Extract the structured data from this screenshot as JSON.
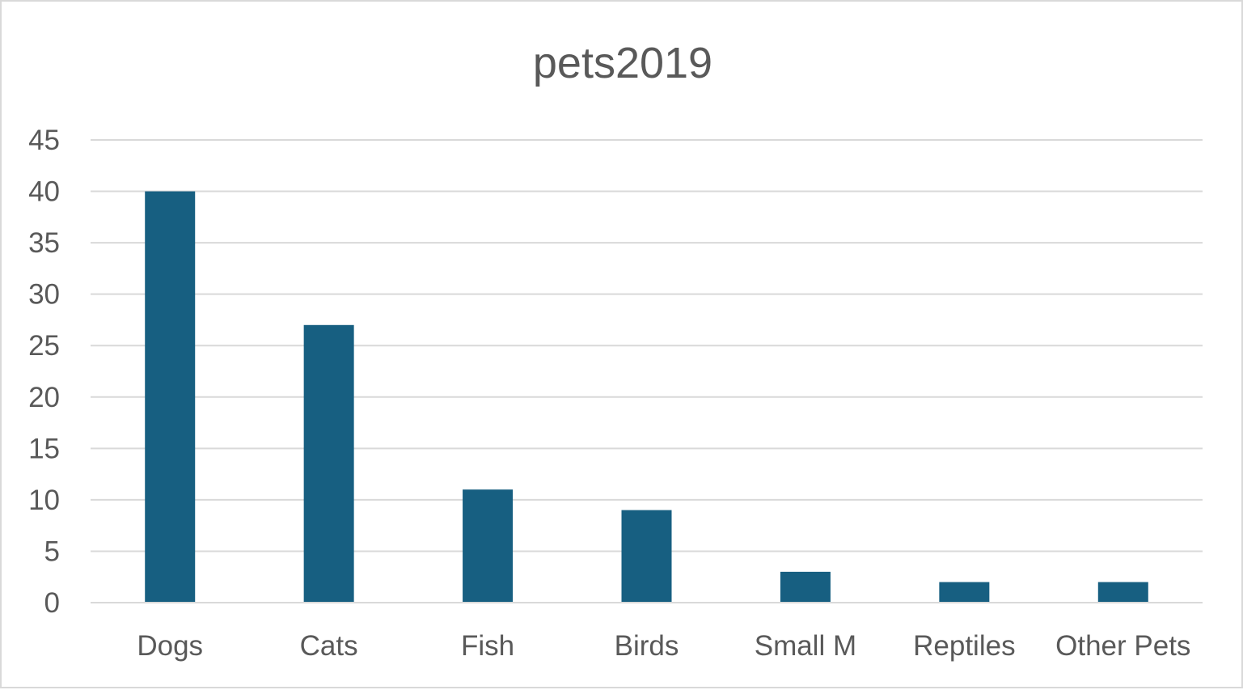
{
  "chart_data": {
    "type": "bar",
    "title": "pets2019",
    "categories": [
      "Dogs",
      "Cats",
      "Fish",
      "Birds",
      "Small M",
      "Reptiles",
      "Other Pets"
    ],
    "values": [
      40,
      27,
      11,
      9,
      3,
      2,
      2
    ],
    "ylim": [
      0,
      45
    ],
    "yticks": [
      0,
      5,
      10,
      15,
      20,
      25,
      30,
      35,
      40,
      45
    ],
    "xlabel": "",
    "ylabel": "",
    "grid": true,
    "legend": "none",
    "bar_color": "#175f81"
  }
}
